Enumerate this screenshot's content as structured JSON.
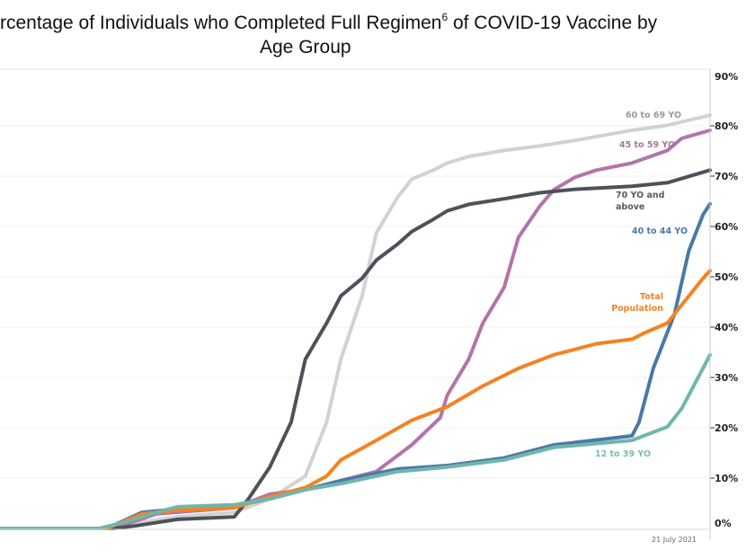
{
  "chart_data": {
    "type": "line",
    "title_line1_pre": "rcentage of Individuals who Completed Full Regimen",
    "title_sup": "6",
    "title_line1_post": " of COVID-19 Vaccine by",
    "title_line2": "Age Group",
    "xlabel": "",
    "ylabel": "",
    "ylim": [
      0,
      90
    ],
    "xlim": [
      0,
      100
    ],
    "y_axis_side": "right",
    "y_ticks": [
      "0%",
      "10%",
      "20%",
      "30%",
      "40%",
      "50%",
      "60%",
      "70%",
      "80%",
      "90%"
    ],
    "grid": true,
    "annotation": "21 July 2021",
    "series": [
      {
        "name": "60 to 69 YO",
        "label_lines": [
          "60 to 69 YO"
        ],
        "color": "#d2d2d2",
        "label_color": "#9a9a9a",
        "points": [
          [
            0,
            0
          ],
          [
            16,
            0
          ],
          [
            19,
            1.1
          ],
          [
            25,
            2.3
          ],
          [
            33,
            3.2
          ],
          [
            38,
            5.9
          ],
          [
            43,
            10.4
          ],
          [
            46,
            21.1
          ],
          [
            48,
            33.6
          ],
          [
            51,
            46.2
          ],
          [
            53,
            58.7
          ],
          [
            56,
            65.8
          ],
          [
            58,
            69.4
          ],
          [
            61,
            71.2
          ],
          [
            63,
            72.6
          ],
          [
            66,
            73.9
          ],
          [
            71,
            75.1
          ],
          [
            76,
            76.0
          ],
          [
            81,
            77.1
          ],
          [
            89,
            79.1
          ],
          [
            94,
            80.1
          ],
          [
            100,
            82.1
          ]
        ]
      },
      {
        "name": "45 to 59 YO",
        "label_lines": [
          "45 to 59 YO"
        ],
        "color": "#b274a9",
        "label_color": "#a8739f",
        "points": [
          [
            0,
            0
          ],
          [
            16,
            0
          ],
          [
            22,
            2.9
          ],
          [
            33,
            4.1
          ],
          [
            38,
            6.8
          ],
          [
            43,
            7.7
          ],
          [
            48,
            9.5
          ],
          [
            53,
            11.3
          ],
          [
            58,
            16.6
          ],
          [
            62,
            22.0
          ],
          [
            63,
            26.5
          ],
          [
            66,
            33.6
          ],
          [
            68,
            40.8
          ],
          [
            71,
            47.9
          ],
          [
            73,
            57.8
          ],
          [
            76,
            64.0
          ],
          [
            78,
            67.3
          ],
          [
            81,
            69.8
          ],
          [
            84,
            71.2
          ],
          [
            89,
            72.6
          ],
          [
            94,
            75.1
          ],
          [
            96,
            77.5
          ],
          [
            100,
            79.1
          ]
        ]
      },
      {
        "name": "70 YO and above",
        "label_lines": [
          "70 YO and",
          "above"
        ],
        "color": "#4d5159",
        "label_color": "#555a62",
        "points": [
          [
            0,
            0
          ],
          [
            16,
            0
          ],
          [
            19,
            0.5
          ],
          [
            25,
            1.8
          ],
          [
            33,
            2.3
          ],
          [
            35,
            5.9
          ],
          [
            38,
            12.2
          ],
          [
            41,
            21.1
          ],
          [
            43,
            33.6
          ],
          [
            46,
            40.8
          ],
          [
            48,
            46.2
          ],
          [
            51,
            49.7
          ],
          [
            53,
            53.3
          ],
          [
            56,
            56.5
          ],
          [
            58,
            59.0
          ],
          [
            61,
            61.4
          ],
          [
            63,
            63.1
          ],
          [
            66,
            64.4
          ],
          [
            71,
            65.5
          ],
          [
            76,
            66.7
          ],
          [
            81,
            67.4
          ],
          [
            89,
            68.0
          ],
          [
            94,
            68.7
          ],
          [
            100,
            71.2
          ]
        ]
      },
      {
        "name": "40 to 44 YO",
        "label_lines": [
          "40 to 44 YO"
        ],
        "color": "#4a79a8",
        "label_color": "#4a79a8",
        "points": [
          [
            0,
            0
          ],
          [
            15,
            0
          ],
          [
            20,
            3.2
          ],
          [
            25,
            3.9
          ],
          [
            33,
            4.5
          ],
          [
            38,
            5.9
          ],
          [
            43,
            7.7
          ],
          [
            48,
            9.5
          ],
          [
            56,
            11.8
          ],
          [
            63,
            12.5
          ],
          [
            71,
            14.0
          ],
          [
            78,
            16.6
          ],
          [
            89,
            18.4
          ],
          [
            90,
            21.1
          ],
          [
            92,
            31.8
          ],
          [
            95,
            42.6
          ],
          [
            97,
            55.1
          ],
          [
            99,
            62.3
          ],
          [
            100,
            64.5
          ]
        ]
      },
      {
        "name": "Total Population",
        "label_lines": [
          "Total",
          "Population"
        ],
        "color": "#f58220",
        "label_color": "#f08323",
        "points": [
          [
            0,
            0
          ],
          [
            15,
            0
          ],
          [
            20,
            2.9
          ],
          [
            25,
            3.6
          ],
          [
            33,
            4.1
          ],
          [
            38,
            6.3
          ],
          [
            43,
            8.1
          ],
          [
            46,
            10.4
          ],
          [
            48,
            13.6
          ],
          [
            53,
            17.5
          ],
          [
            58,
            21.5
          ],
          [
            63,
            24.2
          ],
          [
            68,
            28.3
          ],
          [
            73,
            31.8
          ],
          [
            78,
            34.5
          ],
          [
            84,
            36.7
          ],
          [
            89,
            37.6
          ],
          [
            91,
            39.0
          ],
          [
            94,
            40.8
          ],
          [
            96,
            44.4
          ],
          [
            99,
            49.7
          ],
          [
            100,
            51.2
          ]
        ]
      },
      {
        "name": "12 to 39 YO",
        "label_lines": [
          "12 to 39 YO"
        ],
        "color": "#70b6aa",
        "label_color": "#7dbab1",
        "points": [
          [
            0,
            0
          ],
          [
            14,
            0
          ],
          [
            18,
            1.4
          ],
          [
            22,
            3.2
          ],
          [
            25,
            4.3
          ],
          [
            33,
            4.7
          ],
          [
            38,
            5.9
          ],
          [
            43,
            7.7
          ],
          [
            48,
            8.9
          ],
          [
            56,
            11.3
          ],
          [
            63,
            12.2
          ],
          [
            71,
            13.6
          ],
          [
            78,
            16.1
          ],
          [
            89,
            17.5
          ],
          [
            94,
            20.2
          ],
          [
            96,
            23.8
          ],
          [
            99,
            31.8
          ],
          [
            100,
            34.5
          ]
        ]
      }
    ]
  }
}
